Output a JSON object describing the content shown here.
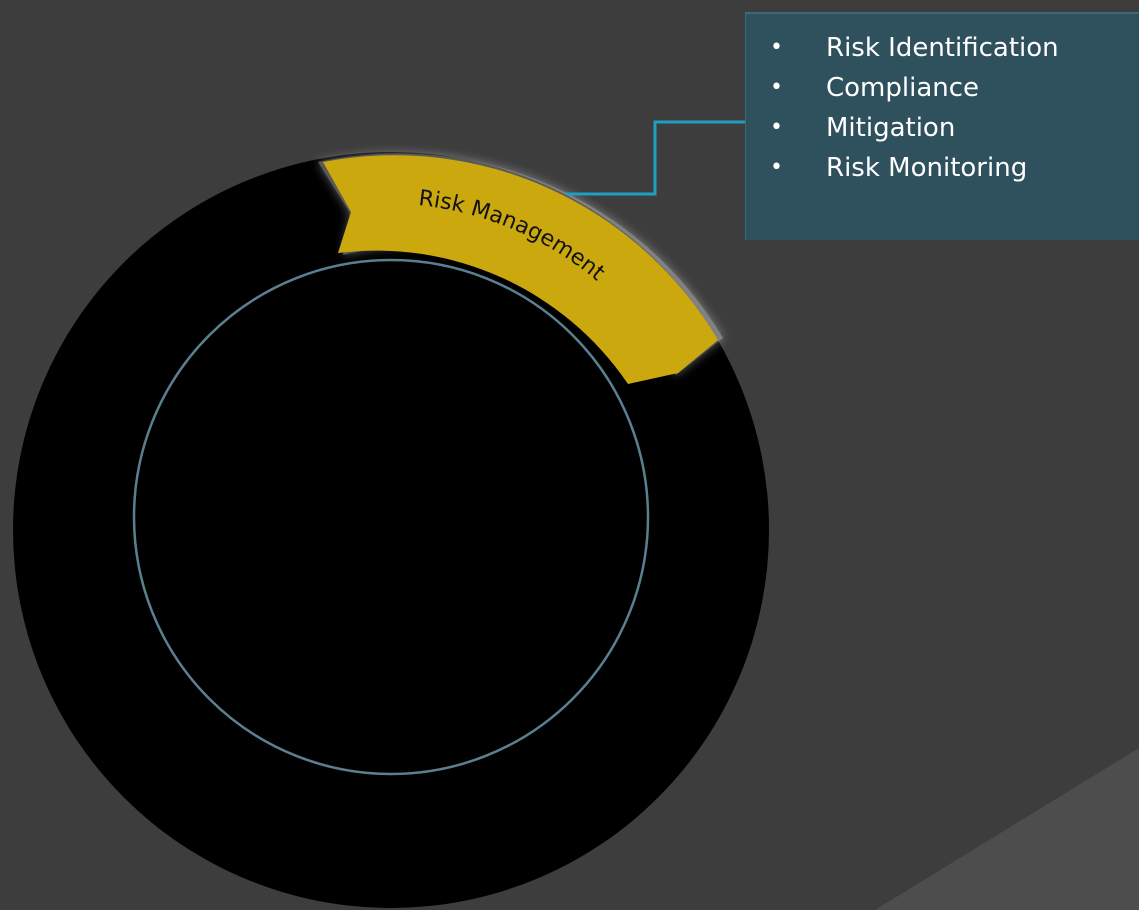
{
  "diagram": {
    "highlighted_segment": {
      "label": "Risk Management",
      "color": "#cba80d"
    },
    "ring_color": "#000000",
    "inner_circle_stroke": "#5a8090",
    "background_color": "#3d3d3d"
  },
  "callout": {
    "background_color": "#2f515d",
    "connector_color": "#1f9fc3",
    "items": [
      {
        "text": "Risk Identification"
      },
      {
        "text": "Compliance"
      },
      {
        "text": "Mitigation"
      },
      {
        "text": "Risk Monitoring"
      }
    ]
  }
}
